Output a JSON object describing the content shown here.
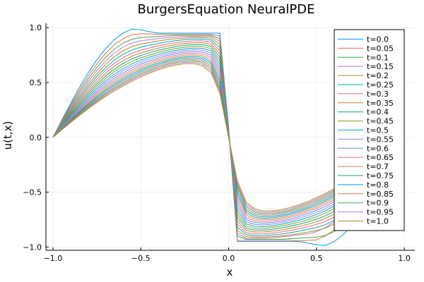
{
  "chart_data": {
    "type": "line",
    "title": "BurgersEquation NeuralPDE",
    "xlabel": "x",
    "ylabel": "u(t,x)",
    "xlim": [
      -1.04,
      1.06
    ],
    "ylim": [
      -1.03,
      1.04
    ],
    "xticks": [
      -1.0,
      -0.5,
      0.0,
      0.5,
      1.0
    ],
    "xtick_labels": [
      "−1.0",
      "−0.5",
      "0.0",
      "0.5",
      "1.0"
    ],
    "yticks": [
      -1.0,
      -0.5,
      0.0,
      0.5,
      1.0
    ],
    "ytick_labels": [
      "−1.0",
      "−0.5",
      "0.0",
      "0.5",
      "1.0"
    ],
    "grid": true,
    "legend_position": "top-right",
    "colors": [
      "#009AFA",
      "#E36F47",
      "#3EA44E",
      "#C271D2",
      "#AC8E18",
      "#00A9AD",
      "#ED5E93",
      "#C68225",
      "#00A98D",
      "#8E971E",
      "#00A9CD",
      "#9B7FE9",
      "#618DF6",
      "#F16C8B",
      "#D08850",
      "#229C6E",
      "#009AFA",
      "#E36F47",
      "#3EA44E",
      "#C271D2",
      "#AC8E18"
    ],
    "x": [
      -1.0,
      -0.95,
      -0.9,
      -0.85,
      -0.8,
      -0.75,
      -0.7,
      -0.65,
      -0.6,
      -0.55,
      -0.5,
      -0.45,
      -0.4,
      -0.35,
      -0.3,
      -0.25,
      -0.2,
      -0.15,
      -0.1,
      -0.05,
      0.0,
      0.05,
      0.1,
      0.15,
      0.2,
      0.25,
      0.3,
      0.35,
      0.4,
      0.45,
      0.5,
      0.55,
      0.6,
      0.65,
      0.7,
      0.75,
      0.8,
      0.85,
      0.9,
      0.95,
      1.0
    ],
    "series": [
      {
        "name": "t=0.0",
        "values": [
          0.0,
          0.156,
          0.309,
          0.454,
          0.588,
          0.707,
          0.809,
          0.891,
          0.951,
          0.988,
          0.98,
          0.963,
          0.95,
          0.95,
          0.95,
          0.95,
          0.95,
          0.95,
          0.95,
          0.95,
          0.09,
          -0.95,
          -0.95,
          -0.95,
          -0.95,
          -0.95,
          -0.95,
          -0.95,
          -0.95,
          -0.963,
          -0.98,
          -0.988,
          -0.951,
          -0.891,
          -0.809,
          -0.707,
          -0.588,
          -0.454,
          -0.309,
          -0.156,
          0.0
        ]
      },
      {
        "name": "t=0.05",
        "values": [
          0.0,
          0.148,
          0.293,
          0.43,
          0.557,
          0.67,
          0.767,
          0.845,
          0.9,
          0.935,
          0.945,
          0.942,
          0.94,
          0.94,
          0.94,
          0.94,
          0.94,
          0.94,
          0.94,
          0.925,
          0.08,
          -0.94,
          -0.94,
          -0.94,
          -0.94,
          -0.94,
          -0.94,
          -0.94,
          -0.945,
          -0.94,
          -0.935,
          -0.9,
          -0.845,
          -0.767,
          -0.67,
          -0.557,
          -0.43,
          -0.293,
          -0.148,
          0.0,
          0.0
        ]
      },
      {
        "name": "t=0.1",
        "values": [
          0.0,
          0.141,
          0.278,
          0.41,
          0.53,
          0.638,
          0.73,
          0.805,
          0.86,
          0.895,
          0.91,
          0.915,
          0.92,
          0.925,
          0.93,
          0.93,
          0.93,
          0.93,
          0.93,
          0.9,
          0.08,
          -0.9,
          -0.93,
          -0.93,
          -0.93,
          -0.93,
          -0.93,
          -0.925,
          -0.92,
          -0.915,
          -0.91,
          -0.895,
          -0.86,
          -0.805,
          -0.73,
          -0.638,
          -0.53,
          -0.41,
          -0.278,
          -0.141,
          0.0
        ]
      },
      {
        "name": "t=0.15",
        "values": [
          0.0,
          0.135,
          0.265,
          0.39,
          0.505,
          0.608,
          0.697,
          0.77,
          0.825,
          0.86,
          0.88,
          0.89,
          0.9,
          0.908,
          0.915,
          0.92,
          0.92,
          0.92,
          0.92,
          0.875,
          0.07,
          -0.875,
          -0.92,
          -0.92,
          -0.92,
          -0.915,
          -0.908,
          -0.9,
          -0.89,
          -0.88,
          -0.86,
          -0.825,
          -0.77,
          -0.697,
          -0.608,
          -0.505,
          -0.39,
          -0.265,
          -0.135,
          0.0,
          0.0
        ]
      },
      {
        "name": "t=0.2",
        "values": [
          0.0,
          0.128,
          0.253,
          0.372,
          0.482,
          0.58,
          0.665,
          0.735,
          0.79,
          0.828,
          0.85,
          0.865,
          0.878,
          0.89,
          0.9,
          0.905,
          0.91,
          0.91,
          0.905,
          0.85,
          0.07,
          -0.85,
          -0.905,
          -0.91,
          -0.91,
          -0.905,
          -0.9,
          -0.89,
          -0.878,
          -0.865,
          -0.85,
          -0.828,
          -0.79,
          -0.735,
          -0.665,
          -0.58,
          -0.482,
          -0.372,
          -0.253,
          -0.128,
          0.0
        ]
      },
      {
        "name": "t=0.25",
        "values": [
          0.0,
          0.122,
          0.241,
          0.355,
          0.46,
          0.555,
          0.637,
          0.705,
          0.758,
          0.797,
          0.822,
          0.84,
          0.856,
          0.87,
          0.882,
          0.89,
          0.895,
          0.896,
          0.888,
          0.82,
          0.06,
          -0.82,
          -0.888,
          -0.896,
          -0.895,
          -0.89,
          -0.882,
          -0.87,
          -0.856,
          -0.84,
          -0.822,
          -0.797,
          -0.758,
          -0.705,
          -0.637,
          -0.555,
          -0.46,
          -0.355,
          -0.241,
          -0.122,
          0.0
        ]
      },
      {
        "name": "t=0.3",
        "values": [
          0.0,
          0.117,
          0.23,
          0.338,
          0.44,
          0.53,
          0.61,
          0.676,
          0.728,
          0.768,
          0.795,
          0.816,
          0.834,
          0.85,
          0.863,
          0.873,
          0.879,
          0.88,
          0.87,
          0.79,
          0.06,
          -0.79,
          -0.87,
          -0.88,
          -0.879,
          -0.873,
          -0.863,
          -0.85,
          -0.834,
          -0.816,
          -0.795,
          -0.768,
          -0.728,
          -0.676,
          -0.61,
          -0.53,
          -0.44,
          -0.338,
          -0.23,
          -0.117,
          0.0
        ]
      },
      {
        "name": "t=0.35",
        "values": [
          0.0,
          0.112,
          0.22,
          0.323,
          0.42,
          0.507,
          0.584,
          0.649,
          0.7,
          0.74,
          0.77,
          0.793,
          0.813,
          0.83,
          0.845,
          0.856,
          0.862,
          0.863,
          0.85,
          0.76,
          0.05,
          -0.76,
          -0.85,
          -0.863,
          -0.862,
          -0.856,
          -0.845,
          -0.83,
          -0.813,
          -0.793,
          -0.77,
          -0.74,
          -0.7,
          -0.649,
          -0.584,
          -0.507,
          -0.42,
          -0.323,
          -0.22,
          -0.112,
          0.0
        ]
      },
      {
        "name": "t=0.4",
        "values": [
          0.0,
          0.107,
          0.21,
          0.309,
          0.402,
          0.486,
          0.56,
          0.623,
          0.675,
          0.716,
          0.747,
          0.772,
          0.793,
          0.811,
          0.827,
          0.839,
          0.846,
          0.846,
          0.83,
          0.73,
          0.05,
          -0.73,
          -0.83,
          -0.846,
          -0.846,
          -0.839,
          -0.827,
          -0.811,
          -0.793,
          -0.772,
          -0.747,
          -0.716,
          -0.675,
          -0.623,
          -0.56,
          -0.486,
          -0.402,
          -0.309,
          -0.21,
          -0.107,
          0.0
        ]
      },
      {
        "name": "t=0.45",
        "values": [
          0.0,
          0.102,
          0.2,
          0.295,
          0.385,
          0.466,
          0.538,
          0.6,
          0.651,
          0.692,
          0.725,
          0.751,
          0.774,
          0.793,
          0.809,
          0.822,
          0.83,
          0.829,
          0.81,
          0.7,
          0.04,
          -0.7,
          -0.81,
          -0.829,
          -0.83,
          -0.822,
          -0.809,
          -0.793,
          -0.774,
          -0.751,
          -0.725,
          -0.692,
          -0.651,
          -0.6,
          -0.538,
          -0.466,
          -0.385,
          -0.295,
          -0.2,
          -0.102,
          0.0
        ]
      },
      {
        "name": "t=0.5",
        "values": [
          0.0,
          0.098,
          0.192,
          0.283,
          0.369,
          0.447,
          0.517,
          0.577,
          0.628,
          0.67,
          0.704,
          0.732,
          0.756,
          0.776,
          0.793,
          0.806,
          0.814,
          0.812,
          0.79,
          0.67,
          0.04,
          -0.67,
          -0.79,
          -0.812,
          -0.814,
          -0.806,
          -0.793,
          -0.776,
          -0.756,
          -0.732,
          -0.704,
          -0.67,
          -0.628,
          -0.577,
          -0.517,
          -0.447,
          -0.369,
          -0.283,
          -0.192,
          -0.098,
          0.0
        ]
      },
      {
        "name": "t=0.55",
        "values": [
          0.0,
          0.094,
          0.184,
          0.271,
          0.354,
          0.43,
          0.498,
          0.557,
          0.608,
          0.65,
          0.685,
          0.714,
          0.739,
          0.76,
          0.778,
          0.791,
          0.798,
          0.795,
          0.77,
          0.64,
          0.03,
          -0.64,
          -0.77,
          -0.795,
          -0.798,
          -0.791,
          -0.778,
          -0.76,
          -0.739,
          -0.714,
          -0.685,
          -0.65,
          -0.608,
          -0.557,
          -0.498,
          -0.43,
          -0.354,
          -0.271,
          -0.184,
          -0.094,
          0.0
        ]
      },
      {
        "name": "t=0.6",
        "values": [
          0.0,
          0.09,
          0.177,
          0.261,
          0.34,
          0.414,
          0.48,
          0.538,
          0.588,
          0.631,
          0.667,
          0.697,
          0.723,
          0.745,
          0.763,
          0.776,
          0.783,
          0.778,
          0.75,
          0.61,
          0.03,
          -0.61,
          -0.75,
          -0.778,
          -0.783,
          -0.776,
          -0.763,
          -0.745,
          -0.723,
          -0.697,
          -0.667,
          -0.631,
          -0.588,
          -0.538,
          -0.48,
          -0.414,
          -0.34,
          -0.261,
          -0.177,
          -0.09,
          0.0
        ]
      },
      {
        "name": "t=0.65",
        "values": [
          0.0,
          0.087,
          0.17,
          0.251,
          0.328,
          0.399,
          0.463,
          0.52,
          0.57,
          0.613,
          0.65,
          0.681,
          0.708,
          0.73,
          0.748,
          0.762,
          0.768,
          0.761,
          0.73,
          0.58,
          0.02,
          -0.58,
          -0.73,
          -0.761,
          -0.768,
          -0.762,
          -0.748,
          -0.73,
          -0.708,
          -0.681,
          -0.65,
          -0.613,
          -0.57,
          -0.52,
          -0.463,
          -0.399,
          -0.328,
          -0.251,
          -0.17,
          -0.087,
          0.0
        ]
      },
      {
        "name": "t=0.7",
        "values": [
          0.0,
          0.083,
          0.164,
          0.242,
          0.316,
          0.385,
          0.448,
          0.504,
          0.553,
          0.596,
          0.634,
          0.666,
          0.693,
          0.716,
          0.734,
          0.748,
          0.753,
          0.745,
          0.71,
          0.55,
          0.02,
          -0.55,
          -0.71,
          -0.745,
          -0.753,
          -0.748,
          -0.734,
          -0.716,
          -0.693,
          -0.666,
          -0.634,
          -0.596,
          -0.553,
          -0.504,
          -0.448,
          -0.385,
          -0.316,
          -0.242,
          -0.164,
          -0.083,
          0.0
        ]
      },
      {
        "name": "t=0.75",
        "values": [
          0.0,
          0.08,
          0.158,
          0.233,
          0.305,
          0.372,
          0.433,
          0.488,
          0.537,
          0.58,
          0.618,
          0.651,
          0.679,
          0.702,
          0.721,
          0.734,
          0.739,
          0.729,
          0.69,
          0.52,
          0.02,
          -0.52,
          -0.69,
          -0.729,
          -0.739,
          -0.734,
          -0.721,
          -0.702,
          -0.679,
          -0.651,
          -0.618,
          -0.58,
          -0.537,
          -0.488,
          -0.433,
          -0.372,
          -0.305,
          -0.233,
          -0.158,
          -0.08,
          0.0
        ]
      },
      {
        "name": "t=0.8",
        "values": [
          0.0,
          0.077,
          0.153,
          0.226,
          0.295,
          0.36,
          0.42,
          0.474,
          0.522,
          0.565,
          0.603,
          0.637,
          0.666,
          0.689,
          0.708,
          0.721,
          0.725,
          0.713,
          0.67,
          0.49,
          0.01,
          -0.49,
          -0.67,
          -0.713,
          -0.725,
          -0.721,
          -0.708,
          -0.689,
          -0.666,
          -0.637,
          -0.603,
          -0.565,
          -0.522,
          -0.474,
          -0.42,
          -0.36,
          -0.295,
          -0.226,
          -0.153,
          -0.077,
          0.0
        ]
      },
      {
        "name": "t=0.85",
        "values": [
          0.0,
          0.075,
          0.148,
          0.218,
          0.286,
          0.349,
          0.407,
          0.46,
          0.508,
          0.551,
          0.589,
          0.623,
          0.653,
          0.676,
          0.695,
          0.708,
          0.711,
          0.698,
          0.65,
          0.46,
          0.01,
          -0.46,
          -0.65,
          -0.698,
          -0.711,
          -0.708,
          -0.695,
          -0.676,
          -0.653,
          -0.623,
          -0.589,
          -0.551,
          -0.508,
          -0.46,
          -0.407,
          -0.349,
          -0.286,
          -0.218,
          -0.148,
          -0.075,
          0.0
        ]
      },
      {
        "name": "t=0.9",
        "values": [
          0.0,
          0.072,
          0.143,
          0.211,
          0.277,
          0.338,
          0.395,
          0.447,
          0.494,
          0.537,
          0.576,
          0.61,
          0.64,
          0.664,
          0.683,
          0.695,
          0.698,
          0.683,
          0.63,
          0.44,
          0.01,
          -0.44,
          -0.63,
          -0.683,
          -0.698,
          -0.695,
          -0.683,
          -0.664,
          -0.64,
          -0.61,
          -0.576,
          -0.537,
          -0.494,
          -0.447,
          -0.395,
          -0.338,
          -0.277,
          -0.211,
          -0.143,
          -0.072,
          0.0
        ]
      },
      {
        "name": "t=0.95",
        "values": [
          0.0,
          0.07,
          0.138,
          0.205,
          0.268,
          0.328,
          0.384,
          0.435,
          0.482,
          0.525,
          0.563,
          0.598,
          0.628,
          0.652,
          0.671,
          0.683,
          0.685,
          0.668,
          0.61,
          0.42,
          0.0,
          -0.42,
          -0.61,
          -0.668,
          -0.685,
          -0.683,
          -0.671,
          -0.652,
          -0.628,
          -0.598,
          -0.563,
          -0.525,
          -0.482,
          -0.435,
          -0.384,
          -0.328,
          -0.268,
          -0.205,
          -0.138,
          -0.07,
          0.0
        ]
      },
      {
        "name": "t=1.0",
        "values": [
          0.0,
          0.068,
          0.134,
          0.199,
          0.26,
          0.318,
          0.373,
          0.423,
          0.47,
          0.512,
          0.551,
          0.586,
          0.616,
          0.64,
          0.659,
          0.671,
          0.672,
          0.653,
          0.59,
          0.4,
          0.0,
          -0.4,
          -0.59,
          -0.653,
          -0.672,
          -0.671,
          -0.659,
          -0.64,
          -0.616,
          -0.586,
          -0.551,
          -0.512,
          -0.47,
          -0.423,
          -0.373,
          -0.318,
          -0.26,
          -0.199,
          -0.134,
          -0.068,
          0.0
        ]
      }
    ]
  }
}
